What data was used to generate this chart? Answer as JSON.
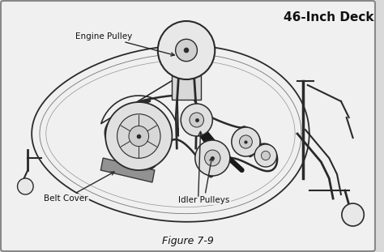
{
  "title": "46-Inch Deck",
  "figure_label": "Figure 7-9",
  "bg_color": "#d8d8d8",
  "inner_bg": "#f0f0f0",
  "line_color": "#2a2a2a",
  "line_color_light": "#555555",
  "annotation_color": "#111111",
  "labels": {
    "engine_pulley": "Engine Pulley",
    "belt_cover": "Belt Cover",
    "idler_pulleys": "Idler Pulleys"
  },
  "title_fontsize": 11,
  "label_fontsize": 7.5,
  "fig_label_fontsize": 9,
  "figsize": [
    4.74,
    3.11
  ],
  "dpi": 100
}
